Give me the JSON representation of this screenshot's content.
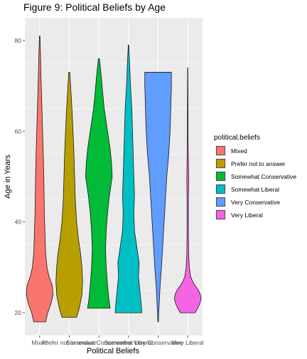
{
  "chart_data": {
    "type": "violin",
    "title": "Figure 9: Political Beliefs by Age",
    "xlabel": "Political Beliefs",
    "ylabel": "Age in Years",
    "ylim": [
      15,
      85
    ],
    "yticks": [
      20,
      40,
      60,
      80
    ],
    "grid": true,
    "legend_position": "right",
    "legend_title": "political.beliefs",
    "categories": [
      "Mixed",
      "Prefer not to answer",
      "Somewhat Conservative",
      "Somewhat Liberal",
      "Very Conservative",
      "Very Liberal"
    ],
    "series": [
      {
        "name": "Mixed",
        "color": "#F8766D",
        "min": 18,
        "max": 81,
        "profile": [
          [
            18,
            0.45
          ],
          [
            20,
            0.6
          ],
          [
            22,
            0.85
          ],
          [
            24,
            1.0
          ],
          [
            26,
            0.95
          ],
          [
            28,
            0.7
          ],
          [
            30,
            0.55
          ],
          [
            33,
            0.45
          ],
          [
            37,
            0.4
          ],
          [
            42,
            0.35
          ],
          [
            48,
            0.32
          ],
          [
            54,
            0.28
          ],
          [
            60,
            0.22
          ],
          [
            66,
            0.16
          ],
          [
            72,
            0.1
          ],
          [
            77,
            0.06
          ],
          [
            81,
            0.02
          ]
        ]
      },
      {
        "name": "Prefer not to answer",
        "color": "#B79F00",
        "min": 19,
        "max": 73,
        "profile": [
          [
            19,
            0.55
          ],
          [
            21,
            0.75
          ],
          [
            24,
            0.95
          ],
          [
            27,
            1.0
          ],
          [
            30,
            0.95
          ],
          [
            33,
            0.85
          ],
          [
            36,
            0.7
          ],
          [
            40,
            0.55
          ],
          [
            45,
            0.45
          ],
          [
            50,
            0.4
          ],
          [
            55,
            0.35
          ],
          [
            60,
            0.28
          ],
          [
            65,
            0.2
          ],
          [
            69,
            0.12
          ],
          [
            73,
            0.04
          ]
        ]
      },
      {
        "name": "Somewhat Conservative",
        "color": "#00BA38",
        "min": 21,
        "max": 76,
        "profile": [
          [
            21,
            0.85
          ],
          [
            23,
            0.75
          ],
          [
            26,
            0.65
          ],
          [
            30,
            0.55
          ],
          [
            34,
            0.5
          ],
          [
            38,
            0.55
          ],
          [
            42,
            0.65
          ],
          [
            46,
            0.8
          ],
          [
            50,
            1.0
          ],
          [
            53,
            0.95
          ],
          [
            56,
            0.85
          ],
          [
            59,
            0.7
          ],
          [
            62,
            0.55
          ],
          [
            65,
            0.4
          ],
          [
            68,
            0.3
          ],
          [
            72,
            0.18
          ],
          [
            76,
            0.04
          ]
        ]
      },
      {
        "name": "Somewhat Liberal",
        "color": "#00BFC4",
        "min": 20,
        "max": 79,
        "profile": [
          [
            20,
            1.0
          ],
          [
            22,
            0.95
          ],
          [
            25,
            0.85
          ],
          [
            28,
            0.75
          ],
          [
            31,
            0.8
          ],
          [
            34,
            0.65
          ],
          [
            38,
            0.45
          ],
          [
            42,
            0.4
          ],
          [
            46,
            0.45
          ],
          [
            50,
            0.4
          ],
          [
            55,
            0.35
          ],
          [
            60,
            0.3
          ],
          [
            65,
            0.25
          ],
          [
            70,
            0.15
          ],
          [
            75,
            0.08
          ],
          [
            79,
            0.02
          ]
        ]
      },
      {
        "name": "Very Conservative",
        "color": "#619CFF",
        "min": 18,
        "max": 73,
        "profile": [
          [
            18,
            0.02
          ],
          [
            22,
            0.08
          ],
          [
            26,
            0.15
          ],
          [
            30,
            0.25
          ],
          [
            35,
            0.35
          ],
          [
            40,
            0.45
          ],
          [
            45,
            0.55
          ],
          [
            50,
            0.65
          ],
          [
            55,
            0.8
          ],
          [
            60,
            0.9
          ],
          [
            65,
            0.95
          ],
          [
            70,
            1.0
          ],
          [
            73,
            1.0
          ]
        ]
      },
      {
        "name": "Very Liberal",
        "color": "#F564E3",
        "min": 20,
        "max": 74,
        "profile": [
          [
            20,
            0.55
          ],
          [
            21,
            0.75
          ],
          [
            22,
            0.9
          ],
          [
            23,
            1.0
          ],
          [
            24,
            0.95
          ],
          [
            25,
            0.8
          ],
          [
            26,
            0.55
          ],
          [
            27,
            0.35
          ],
          [
            28,
            0.22
          ],
          [
            30,
            0.12
          ],
          [
            33,
            0.07
          ],
          [
            38,
            0.05
          ],
          [
            45,
            0.05
          ],
          [
            50,
            0.07
          ],
          [
            53,
            0.05
          ],
          [
            58,
            0.03
          ],
          [
            65,
            0.02
          ],
          [
            70,
            0.015
          ],
          [
            74,
            0.01
          ]
        ]
      }
    ]
  }
}
